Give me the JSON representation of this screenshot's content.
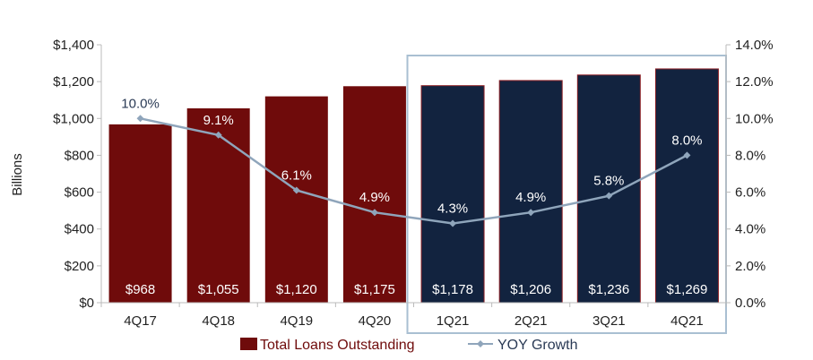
{
  "chart_data": {
    "type": "bar",
    "categories": [
      "4Q17",
      "4Q18",
      "4Q19",
      "4Q20",
      "1Q21",
      "2Q21",
      "3Q21",
      "4Q21"
    ],
    "series": [
      {
        "name": "Total Loans Outstanding",
        "type": "bar",
        "axis": "left",
        "values": [
          968,
          1055,
          1120,
          1175,
          1178,
          1206,
          1236,
          1269
        ],
        "labels": [
          "$968",
          "$1,055",
          "$1,120",
          "$1,175",
          "$1,178",
          "$1,206",
          "$1,236",
          "$1,269"
        ]
      },
      {
        "name": "YOY Growth",
        "type": "line",
        "axis": "right",
        "values": [
          10.0,
          9.1,
          6.1,
          4.9,
          4.3,
          4.9,
          5.8,
          8.0
        ],
        "labels": [
          "10.0%",
          "9.1%",
          "6.1%",
          "4.9%",
          "4.3%",
          "4.9%",
          "5.8%",
          "8.0%"
        ]
      }
    ],
    "ylabel": "Billions",
    "ylim": [
      0,
      1400
    ],
    "y2lim": [
      0,
      14
    ],
    "yticks": [
      "$0",
      "$200",
      "$400",
      "$600",
      "$800",
      "$1,000",
      "$1,200",
      "$1,400"
    ],
    "y2ticks": [
      "0.0%",
      "2.0%",
      "4.0%",
      "6.0%",
      "8.0%",
      "10.0%",
      "12.0%",
      "14.0%"
    ],
    "highlighted_categories": [
      "1Q21",
      "2Q21",
      "3Q21",
      "4Q21"
    ],
    "legend_position": "bottom",
    "grid": false,
    "colors": {
      "bar_past": "#6f0b0b",
      "bar_2021": "#12233f",
      "line": "#8fa5bb",
      "box": "#a9bfd2",
      "label_dark": "#2a3a55"
    }
  }
}
